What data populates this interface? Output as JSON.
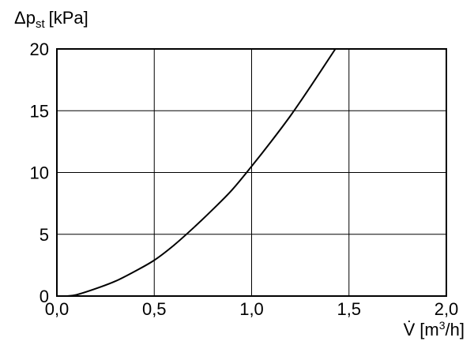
{
  "chart_data": {
    "type": "line",
    "ylabel": {
      "prefix": "Δp",
      "subscript": "st",
      "unit": "[kPa]"
    },
    "xlabel": {
      "symbol": "V̇",
      "unit_prefix": "[m",
      "unit_superscript": "3",
      "unit_suffix": "/h]"
    },
    "xlim": [
      0,
      2
    ],
    "ylim": [
      0,
      20
    ],
    "x_ticks": [
      0,
      0.5,
      1,
      1.5,
      2
    ],
    "x_tick_labels": [
      "0,0",
      "0,5",
      "1,0",
      "1,5",
      "2,0"
    ],
    "y_ticks": [
      0,
      5,
      10,
      15,
      20
    ],
    "y_tick_labels": [
      "0",
      "5",
      "10",
      "15",
      "20"
    ],
    "grid": true,
    "series": [
      {
        "x": [
          0.05,
          0.1,
          0.2,
          0.3,
          0.4,
          0.5,
          0.6,
          0.7,
          0.8,
          0.9,
          1.0,
          1.1,
          1.2,
          1.3,
          1.43
        ],
        "y": [
          0,
          0.1,
          0.6,
          1.2,
          2.0,
          2.9,
          4.1,
          5.5,
          7.0,
          8.6,
          10.5,
          12.5,
          14.6,
          16.9,
          20
        ],
        "color": "#000000"
      }
    ]
  }
}
